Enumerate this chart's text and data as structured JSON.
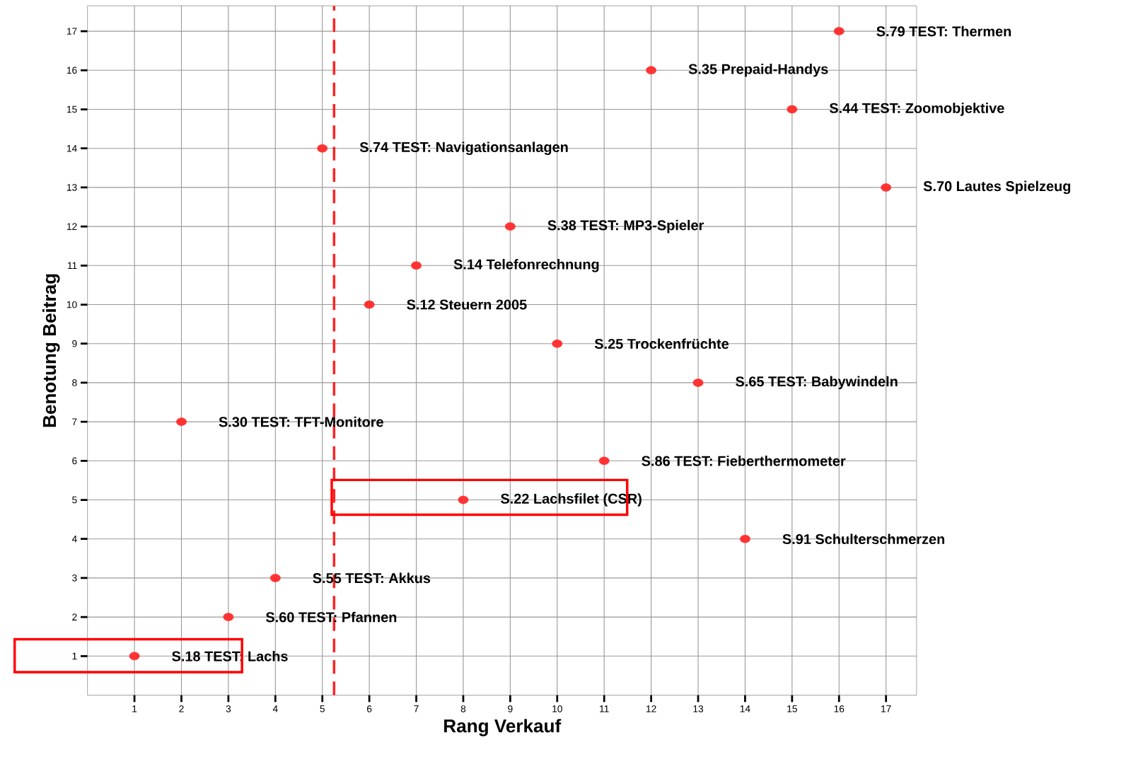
{
  "chart_data": {
    "type": "scatter",
    "xlabel": "Rang Verkauf",
    "ylabel": "Benotung Beitrag",
    "x": [
      1,
      2,
      3,
      4,
      5,
      6,
      7,
      8,
      9,
      10,
      11,
      12,
      13,
      14,
      15,
      16,
      17
    ],
    "series": [
      {
        "color": "#ff3333",
        "values": [
          1,
          7,
          2,
          3,
          14,
          10,
          11,
          5,
          12,
          9,
          6,
          16,
          8,
          4,
          15,
          17,
          13
        ]
      }
    ],
    "xlim": [
      0,
      17.65
    ],
    "ylim": [
      0,
      17.65
    ],
    "xticks": [
      1,
      2,
      3,
      4,
      5,
      6,
      7,
      8,
      9,
      10,
      11,
      12,
      13,
      14,
      15,
      16,
      17
    ],
    "yticks": [
      1,
      2,
      3,
      4,
      5,
      6,
      7,
      8,
      9,
      10,
      11,
      12,
      13,
      14,
      15,
      16,
      17
    ],
    "grid": true,
    "marker": "circle",
    "ref_lines": [
      {
        "axis": "x",
        "value": 5.25,
        "color": "#ff2222",
        "line_style": "dashed"
      }
    ],
    "annotations": [
      {
        "text": "S.18 TEST: Lachs",
        "x": 1,
        "y": 1
      },
      {
        "text": "S.30 TEST: TFT-Monitore",
        "x": 2,
        "y": 7
      },
      {
        "text": "S.60 TEST: Pfannen",
        "x": 3,
        "y": 2
      },
      {
        "text": "S.55 TEST: Akkus",
        "x": 4,
        "y": 3
      },
      {
        "text": "S.74 TEST: Navigationsanlagen",
        "x": 5,
        "y": 14
      },
      {
        "text": "S.12 Steuern 2005",
        "x": 6,
        "y": 10
      },
      {
        "text": "S.14 Telefonrechnung",
        "x": 7,
        "y": 11
      },
      {
        "text": "S.22 Lachsfilet (CSR)",
        "x": 8,
        "y": 5
      },
      {
        "text": "S.38 TEST: MP3-Spieler",
        "x": 9,
        "y": 12
      },
      {
        "text": "S.25 Trockenfrüchte",
        "x": 10,
        "y": 9
      },
      {
        "text": "S.86 TEST: Fieberthermometer",
        "x": 11,
        "y": 6
      },
      {
        "text": "S.35 Prepaid-Handys",
        "x": 12,
        "y": 16
      },
      {
        "text": "S.65 TEST: Babywindeln",
        "x": 13,
        "y": 8
      },
      {
        "text": "S.91 Schulterschmerzen",
        "x": 14,
        "y": 4
      },
      {
        "text": "S.44 TEST: Zoomobjektive",
        "x": 15,
        "y": 15
      },
      {
        "text": "S.79 TEST: Thermen",
        "x": 16,
        "y": 17
      },
      {
        "text": "S.70 Lautes Spielzeug",
        "x": 17,
        "y": 13
      }
    ]
  }
}
